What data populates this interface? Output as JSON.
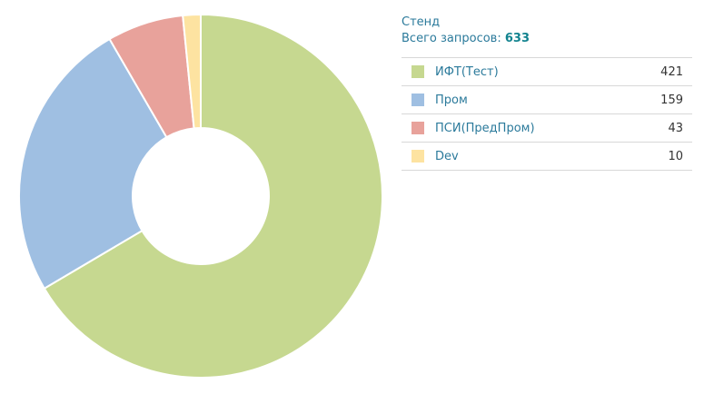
{
  "legend": {
    "title": "Стенд",
    "total_label": "Всего запросов:",
    "total_value": "633"
  },
  "chart_data": {
    "type": "pie",
    "donut": true,
    "total": 633,
    "slices": [
      {
        "label": "ИФТ(Тест)",
        "value": 421,
        "color": "#c6d890"
      },
      {
        "label": "Пром",
        "value": 159,
        "color": "#9fbfe2"
      },
      {
        "label": "ПСИ(ПредПром)",
        "value": 43,
        "color": "#e8a29b"
      },
      {
        "label": "Dev",
        "value": 10,
        "color": "#fde3a1"
      }
    ],
    "legend_placement": "right"
  }
}
